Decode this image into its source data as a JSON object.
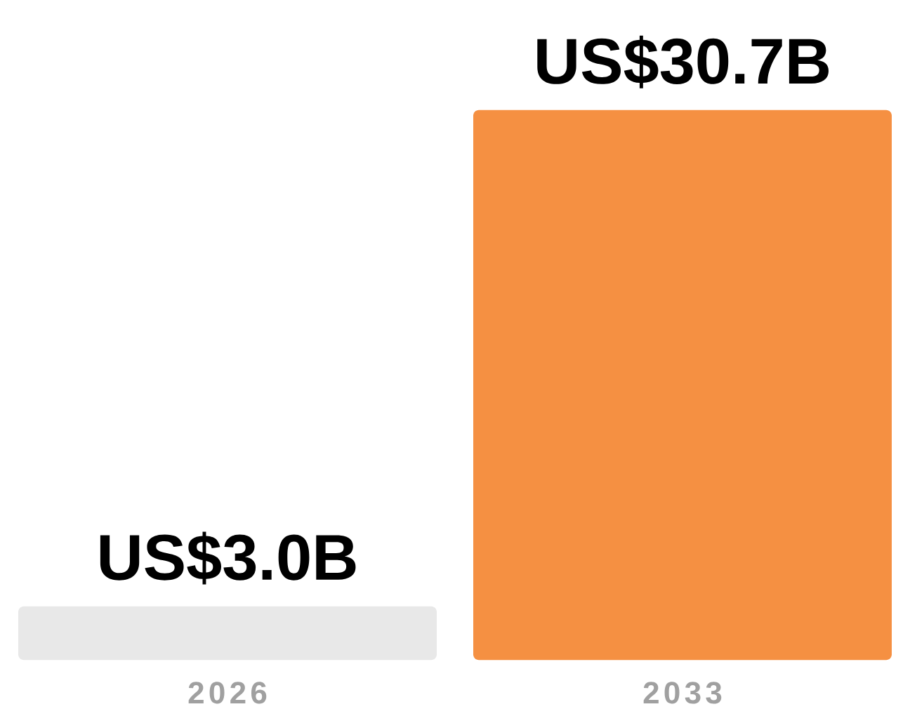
{
  "chart_data": {
    "type": "bar",
    "categories": [
      "2026",
      "2033"
    ],
    "values": [
      3000000000,
      30700000000
    ],
    "colors": [
      "#e8e8e8",
      "#f59042"
    ],
    "value_labels": [
      "US$3.0B",
      "US$30.7B"
    ]
  }
}
